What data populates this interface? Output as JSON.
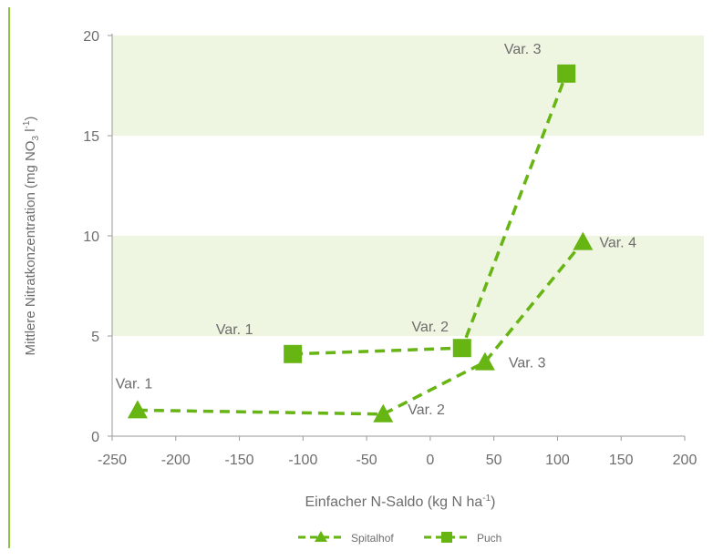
{
  "chart_data": {
    "type": "line",
    "xlabel": "Einfacher N-Saldo (kg N ha",
    "xlabel_sup": "-1",
    "xlabel_close": ")",
    "ylabel": "Mittlere Nitratkonzentration (mg NO",
    "ylabel_sub": "3",
    "ylabel_tail": " l",
    "ylabel_sup": "-1",
    "ylabel_close": ")",
    "xlim": [
      -250,
      200
    ],
    "ylim": [
      0,
      20
    ],
    "x_ticks": [
      "-250",
      "-200",
      "-150",
      "-100",
      "-50",
      "0",
      "50",
      "100",
      "150",
      "200"
    ],
    "y_ticks": [
      "0",
      "5",
      "10",
      "15",
      "20"
    ],
    "colors": {
      "series": "#66b512",
      "band": "#eef5e1",
      "text": "#6d6d6d"
    },
    "legend_position": "bottom-center",
    "series": [
      {
        "name": "Spitalhof",
        "marker": "triangle",
        "points": [
          {
            "x": -230,
            "y": 1.3,
            "label": "Var. 1"
          },
          {
            "x": -37,
            "y": 1.1,
            "label": "Var. 2"
          },
          {
            "x": 43,
            "y": 3.7,
            "label": "Var. 3"
          },
          {
            "x": 120,
            "y": 9.7,
            "label": "Var. 4"
          }
        ]
      },
      {
        "name": "Puch",
        "marker": "square",
        "points": [
          {
            "x": -108,
            "y": 4.1,
            "label": "Var. 1"
          },
          {
            "x": 25,
            "y": 4.4,
            "label": "Var. 2"
          },
          {
            "x": 107,
            "y": 18.1,
            "label": "Var. 3"
          }
        ]
      }
    ]
  }
}
